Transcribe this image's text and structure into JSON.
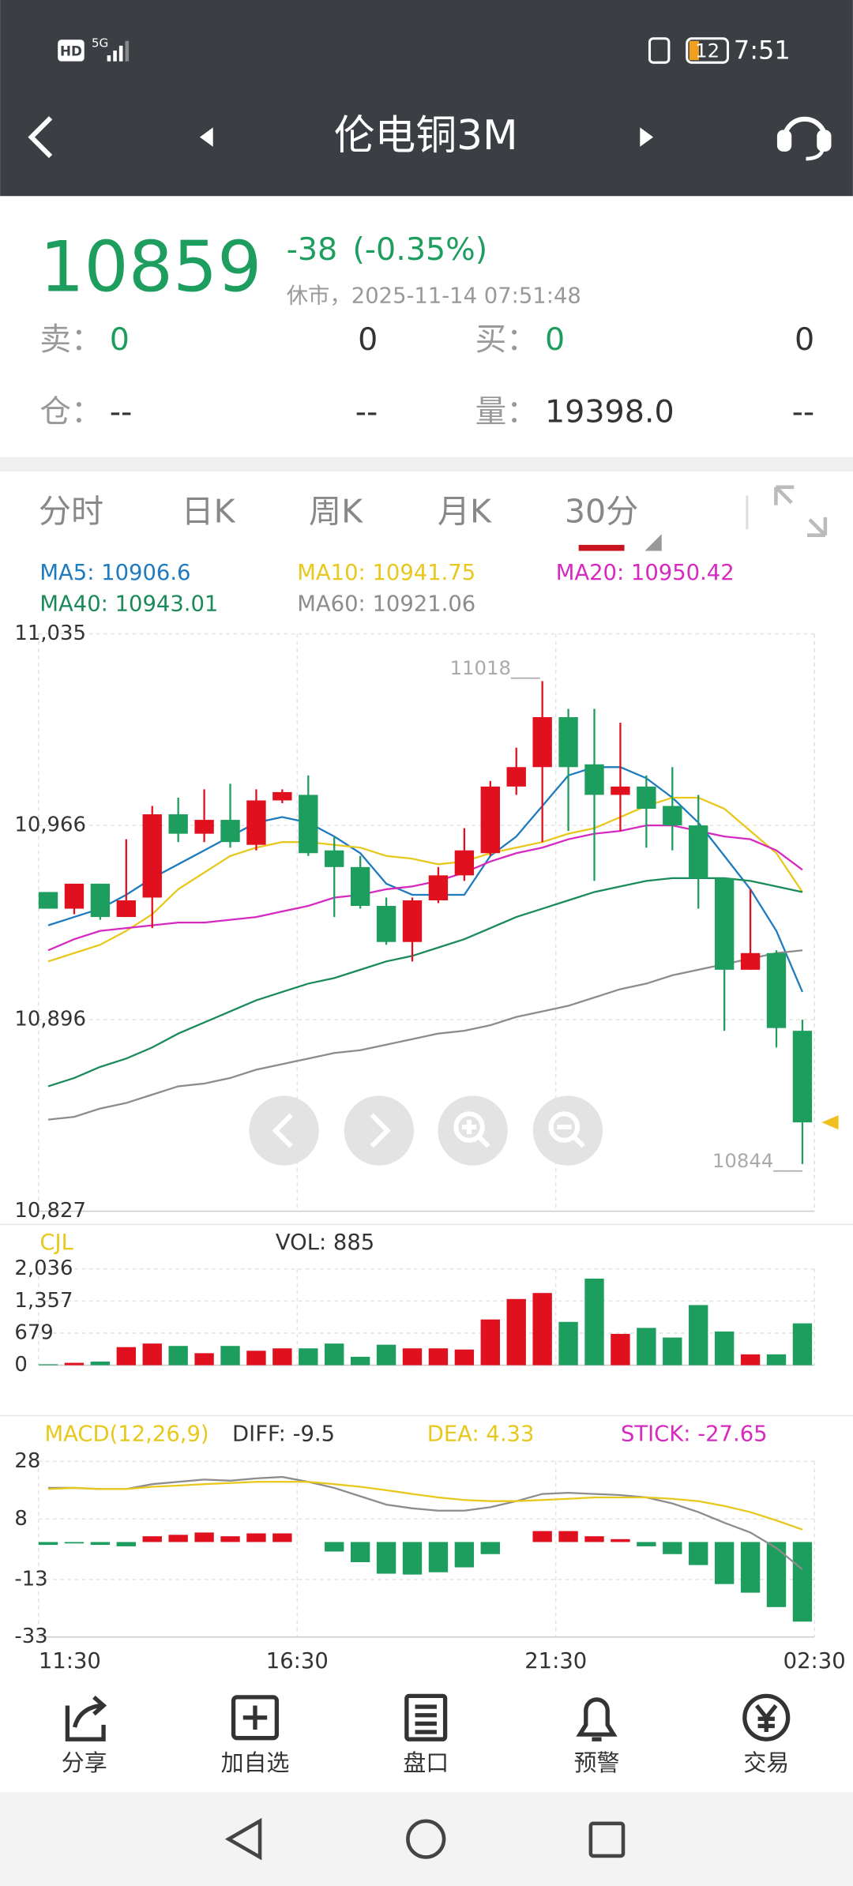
{
  "status_bar": {
    "hd": "HD",
    "network": "5G",
    "battery": "12",
    "time": "7:51"
  },
  "header": {
    "title": "伦电铜3M"
  },
  "quote": {
    "price": "10859",
    "change": "-38",
    "change_pct": "(-0.35%)",
    "status": "休市，2025-11-14 07:51:48",
    "rows": [
      [
        "卖：",
        "0",
        "0",
        "买：",
        "0",
        "0"
      ],
      [
        "仓：",
        "--",
        "--",
        "量：",
        "19398.0",
        "--"
      ]
    ]
  },
  "tabs": [
    "分时",
    "日K",
    "周K",
    "月K",
    "30分"
  ],
  "selected_tab": 4,
  "chart": {
    "type": "candlestick",
    "up_color": "#e0101e",
    "down_color": "#1e9e5e",
    "ylim": [
      10827,
      11035
    ],
    "yticks": [
      {
        "value": 11035,
        "label": "11,035"
      },
      {
        "value": 10966,
        "label": "10,966"
      },
      {
        "value": 10896,
        "label": "10,896"
      },
      {
        "value": 10827,
        "label": "10,827"
      }
    ],
    "candles": [
      {
        "open": 10942,
        "high": 10942,
        "low": 10936,
        "close": 10936
      },
      {
        "open": 10936,
        "high": 10945,
        "low": 10934,
        "close": 10945
      },
      {
        "open": 10945,
        "high": 10945,
        "low": 10932,
        "close": 10933
      },
      {
        "open": 10933,
        "high": 10961,
        "low": 10933,
        "close": 10939
      },
      {
        "open": 10940,
        "high": 10973,
        "low": 10929,
        "close": 10970
      },
      {
        "open": 10970,
        "high": 10976,
        "low": 10960,
        "close": 10963
      },
      {
        "open": 10963,
        "high": 10979,
        "low": 10960,
        "close": 10968
      },
      {
        "open": 10968,
        "high": 10981,
        "low": 10958,
        "close": 10960
      },
      {
        "open": 10959,
        "high": 10979,
        "low": 10957,
        "close": 10975
      },
      {
        "open": 10975,
        "high": 10979,
        "low": 10974,
        "close": 10978
      },
      {
        "open": 10977,
        "high": 10984,
        "low": 10955,
        "close": 10956
      },
      {
        "open": 10957,
        "high": 10962,
        "low": 10933,
        "close": 10951
      },
      {
        "open": 10951,
        "high": 10955,
        "low": 10936,
        "close": 10937
      },
      {
        "open": 10937,
        "high": 10940,
        "low": 10923,
        "close": 10924
      },
      {
        "open": 10924,
        "high": 10940,
        "low": 10917,
        "close": 10939
      },
      {
        "open": 10939,
        "high": 10951,
        "low": 10938,
        "close": 10948
      },
      {
        "open": 10948,
        "high": 10965,
        "low": 10946,
        "close": 10957
      },
      {
        "open": 10956,
        "high": 10982,
        "low": 10955,
        "close": 10980
      },
      {
        "open": 10980,
        "high": 10994,
        "low": 10977,
        "close": 10987
      },
      {
        "open": 10987,
        "high": 11018,
        "low": 10960,
        "close": 11005
      },
      {
        "open": 11005,
        "high": 11008,
        "low": 10964,
        "close": 10987
      },
      {
        "open": 10988,
        "high": 11008,
        "low": 10946,
        "close": 10977
      },
      {
        "open": 10977,
        "high": 11003,
        "low": 10964,
        "close": 10980
      },
      {
        "open": 10980,
        "high": 10984,
        "low": 10958,
        "close": 10972
      },
      {
        "open": 10973,
        "high": 10987,
        "low": 10957,
        "close": 10966
      },
      {
        "open": 10966,
        "high": 10977,
        "low": 10936,
        "close": 10947
      },
      {
        "open": 10947,
        "high": 10947,
        "low": 10892,
        "close": 10914
      },
      {
        "open": 10914,
        "high": 10943,
        "low": 10914,
        "close": 10920
      },
      {
        "open": 10920,
        "high": 10921,
        "low": 10886,
        "close": 10893
      },
      {
        "open": 10892,
        "high": 10896,
        "low": 10844,
        "close": 10859
      }
    ],
    "ma": [
      {
        "label": "MA5: 10906.6",
        "color": "#1e7bbf",
        "values": [
          10930,
          10933,
          10936,
          10941,
          10947,
          10952,
          10957,
          10962,
          10967,
          10969,
          10967,
          10962,
          10956,
          10945,
          10941,
          10941,
          10941,
          10955,
          10962,
          10973,
          10984,
          10987,
          10987,
          10983,
          10976,
          10967,
          10955,
          10943,
          10928,
          10906
        ]
      },
      {
        "label": "MA10: 10941.75",
        "color": "#e8c81c",
        "values": [
          10917,
          10920,
          10923,
          10928,
          10934,
          10943,
          10949,
          10955,
          10958,
          10960,
          10960,
          10959,
          10958,
          10955,
          10954,
          10952,
          10953,
          10956,
          10958,
          10960,
          10963,
          10965,
          10969,
          10973,
          10976,
          10976,
          10972,
          10964,
          10956,
          10942
        ]
      },
      {
        "label": "MA20: 10950.42",
        "color": "#d629c0",
        "values": [
          10921,
          10925,
          10928,
          10929,
          10930,
          10931,
          10931,
          10932,
          10933,
          10935,
          10937,
          10940,
          10941,
          10943,
          10944,
          10946,
          10949,
          10953,
          10956,
          10958,
          10961,
          10963,
          10964,
          10966,
          10966,
          10964,
          10962,
          10961,
          10957,
          10950
        ]
      },
      {
        "label": "MA40: 10943.01",
        "color": "#1a8a5a",
        "values": [
          10872,
          10875,
          10879,
          10882,
          10886,
          10891,
          10895,
          10899,
          10903,
          10906,
          10909,
          10911,
          10914,
          10917,
          10919,
          10922,
          10925,
          10929,
          10933,
          10936,
          10939,
          10942,
          10944,
          10946,
          10947,
          10947,
          10947,
          10946,
          10944,
          10942
        ]
      },
      {
        "label": "MA60: 10921.06",
        "color": "#8c8c8c",
        "values": [
          10860,
          10861,
          10864,
          10866,
          10869,
          10872,
          10873,
          10875,
          10878,
          10880,
          10882,
          10884,
          10885,
          10887,
          10889,
          10891,
          10892,
          10894,
          10897,
          10899,
          10901,
          10904,
          10907,
          10909,
          10912,
          10914,
          10916,
          10918,
          10920,
          10921
        ]
      }
    ],
    "high_label": "11018___",
    "low_label": "10844___"
  },
  "volume": {
    "label": "CJL",
    "vol_label": "VOL: 885",
    "ylim": [
      0,
      2036
    ],
    "yticks": [
      {
        "value": 2036,
        "label": "2,036"
      },
      {
        "value": 1357,
        "label": "1,357"
      },
      679,
      0
    ],
    "values": [
      20,
      50,
      76,
      382,
      458,
      407,
      254,
      407,
      305,
      356,
      356,
      458,
      178,
      433,
      356,
      356,
      331,
      967,
      1400,
      1527,
      916,
      1832,
      662,
      789,
      585,
      1272,
      713,
      229,
      229,
      885
    ]
  },
  "macd": {
    "title": "MACD(12,26,9)",
    "diff_label": "DIFF: -9.5",
    "dea_label": "DEA: 4.33",
    "stick_label": "STICK: -27.65",
    "title_color": "#e8c81c",
    "diff_color": "#8c8c8c",
    "dea_color": "#e8c81c",
    "stick_color": "#d629c0",
    "ylim": [
      -33,
      28
    ],
    "yticks": [
      28,
      8,
      -13,
      -33
    ],
    "diff": [
      18.8,
      18.8,
      18.4,
      18.4,
      20.1,
      20.9,
      21.7,
      21.3,
      22.1,
      22.6,
      20.9,
      18.8,
      15.9,
      13,
      11.7,
      10.9,
      10.9,
      12.1,
      14.2,
      16.7,
      17.1,
      16.7,
      16.3,
      15.5,
      13.4,
      10.4,
      6.7,
      3.3,
      -2.1,
      -9.5
    ],
    "dea": [
      18.4,
      18.8,
      18.4,
      18.4,
      19.2,
      19.6,
      20.1,
      20.5,
      20.9,
      20.9,
      20.9,
      20.1,
      19.2,
      18,
      16.7,
      15.5,
      14.6,
      14.2,
      14.2,
      14.6,
      15,
      15.5,
      15.5,
      15.5,
      15,
      14.2,
      12.5,
      10.4,
      7.5,
      4.33
    ],
    "stick": [
      -1,
      -0.5,
      -1,
      -1.5,
      2,
      2.5,
      3.3,
      2,
      3,
      3,
      0,
      -3.3,
      -7,
      -11,
      -11.3,
      -10.5,
      -8.8,
      -4.2,
      0,
      3.8,
      3.8,
      2,
      1,
      -1.5,
      -4.2,
      -8,
      -14.6,
      -17.6,
      -22.6,
      -27.65
    ]
  },
  "time_labels": [
    "11:30",
    "16:30",
    "21:30",
    "02:30"
  ],
  "toolbar": [
    "分享",
    "加自选",
    "盘口",
    "预警",
    "交易"
  ]
}
